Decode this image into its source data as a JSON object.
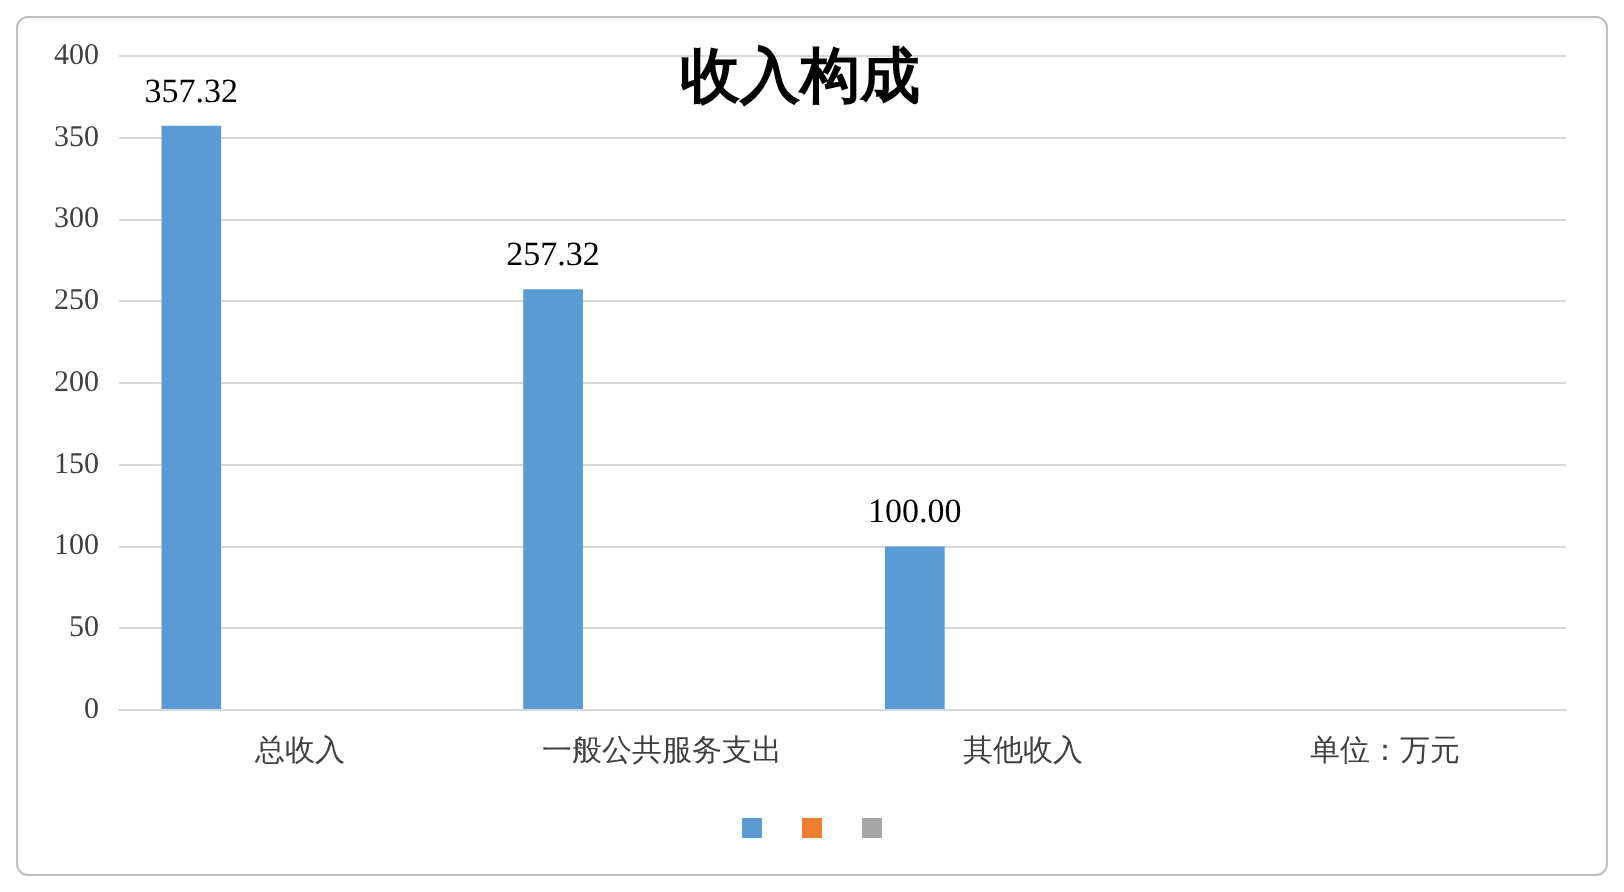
{
  "chart_data": {
    "type": "bar",
    "title": "收入构成",
    "categories": [
      "总收入",
      "一般公共服务支出",
      "其他收入",
      "单位：万元"
    ],
    "series": [
      {
        "color": "#5b9bd5",
        "values": [
          357.32,
          257.32,
          100.0,
          null
        ],
        "value_labels": [
          "357.32",
          "257.32",
          "100.00",
          null
        ]
      },
      {
        "color": "#ed7d31",
        "values": [
          null,
          null,
          null,
          null
        ]
      },
      {
        "color": "#a5a5a5",
        "values": [
          null,
          null,
          null,
          null
        ]
      }
    ],
    "ylim": [
      0,
      400
    ],
    "yticks": [
      0,
      50,
      100,
      150,
      200,
      250,
      300,
      350,
      400
    ],
    "grid": "y"
  }
}
